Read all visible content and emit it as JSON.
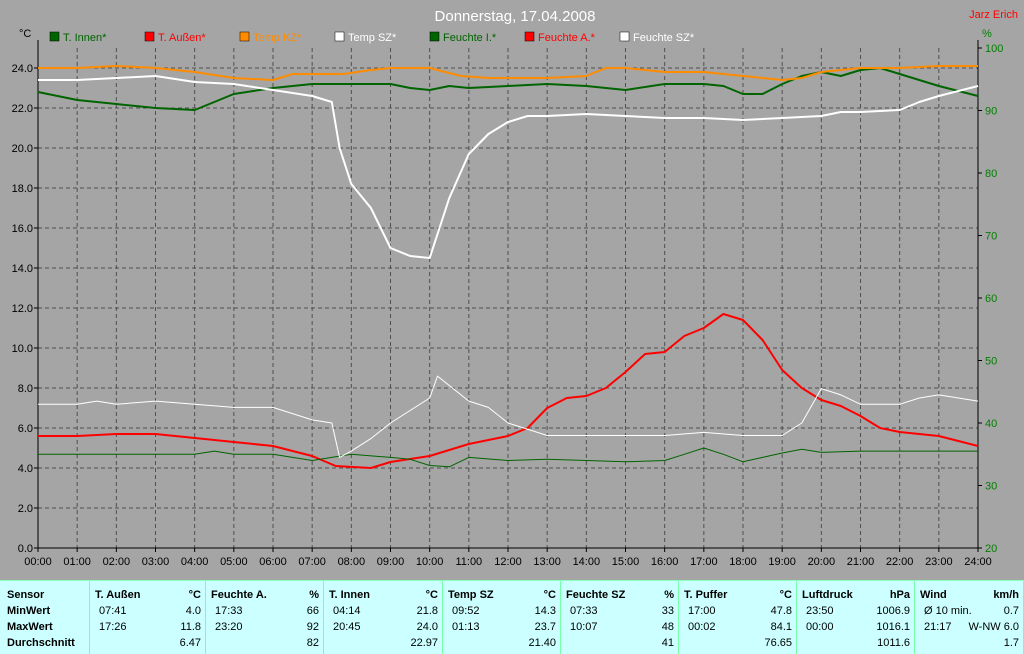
{
  "title": "Donnerstag, 17.04.2008",
  "author": "Jarz Erich",
  "colors": {
    "bg": "#a5a5a5",
    "green": "#006400",
    "red": "#ff0000",
    "orange": "#ff8c00",
    "white": "#ffffff",
    "axis_right": "#008000"
  },
  "chart_data": {
    "type": "line",
    "title": "Donnerstag, 17.04.2008",
    "y_left_unit": "°C",
    "y_right_unit": "%",
    "ylim_left": [
      0,
      25
    ],
    "ylim_right": [
      20,
      100
    ],
    "y_left_ticks": [
      "0.0",
      "2.0",
      "4.0",
      "6.0",
      "8.0",
      "10.0",
      "12.0",
      "14.0",
      "16.0",
      "18.0",
      "20.0",
      "22.0",
      "24.0"
    ],
    "y_right_ticks": [
      "20",
      "30",
      "40",
      "50",
      "60",
      "70",
      "80",
      "90",
      "100"
    ],
    "x_ticks": [
      "00:00",
      "01:00",
      "02:00",
      "03:00",
      "04:00",
      "05:00",
      "06:00",
      "07:00",
      "08:00",
      "09:00",
      "10:00",
      "11:00",
      "12:00",
      "13:00",
      "14:00",
      "15:00",
      "16:00",
      "17:00",
      "18:00",
      "19:00",
      "20:00",
      "21:00",
      "22:00",
      "23:00",
      "24:00"
    ],
    "grid": true,
    "legend": [
      {
        "label": "T. Innen*",
        "color": "#006400"
      },
      {
        "label": "T. Außen*",
        "color": "#ff0000"
      },
      {
        "label": "Temp KZ*",
        "color": "#ff8c00"
      },
      {
        "label": "Temp SZ*",
        "color": "#ffffff"
      },
      {
        "label": "Feuchte I.*",
        "color": "#006400"
      },
      {
        "label": "Feuchte A.*",
        "color": "#ff0000"
      },
      {
        "label": "Feuchte SZ*",
        "color": "#ffffff"
      }
    ],
    "series": [
      {
        "name": "T. Innen*",
        "axis": "left",
        "color": "#006400",
        "width": 2,
        "points": [
          [
            0,
            22.8
          ],
          [
            1,
            22.4
          ],
          [
            2,
            22.2
          ],
          [
            3,
            22.0
          ],
          [
            4,
            21.9
          ],
          [
            4.5,
            22.3
          ],
          [
            5,
            22.7
          ],
          [
            6,
            23.0
          ],
          [
            7,
            23.2
          ],
          [
            8,
            23.2
          ],
          [
            9,
            23.2
          ],
          [
            9.5,
            23.0
          ],
          [
            10,
            22.9
          ],
          [
            10.5,
            23.1
          ],
          [
            11,
            23.0
          ],
          [
            12,
            23.1
          ],
          [
            13,
            23.2
          ],
          [
            14,
            23.1
          ],
          [
            15,
            22.9
          ],
          [
            16,
            23.2
          ],
          [
            17,
            23.2
          ],
          [
            17.5,
            23.1
          ],
          [
            18,
            22.7
          ],
          [
            18.5,
            22.7
          ],
          [
            19,
            23.2
          ],
          [
            19.5,
            23.6
          ],
          [
            20,
            23.8
          ],
          [
            20.5,
            23.6
          ],
          [
            21,
            23.9
          ],
          [
            21.5,
            24.0
          ],
          [
            22,
            23.7
          ],
          [
            23,
            23.1
          ],
          [
            24,
            22.6
          ]
        ]
      },
      {
        "name": "T. Außen*",
        "axis": "left",
        "color": "#ff0000",
        "width": 2,
        "points": [
          [
            0,
            5.6
          ],
          [
            1,
            5.6
          ],
          [
            2,
            5.7
          ],
          [
            3,
            5.7
          ],
          [
            4,
            5.5
          ],
          [
            5,
            5.3
          ],
          [
            6,
            5.1
          ],
          [
            7,
            4.6
          ],
          [
            7.6,
            4.1
          ],
          [
            8.5,
            4.0
          ],
          [
            9,
            4.3
          ],
          [
            10,
            4.6
          ],
          [
            11,
            5.2
          ],
          [
            12,
            5.6
          ],
          [
            12.5,
            6.0
          ],
          [
            13,
            7.0
          ],
          [
            13.5,
            7.5
          ],
          [
            14,
            7.6
          ],
          [
            14.5,
            8.0
          ],
          [
            15,
            8.8
          ],
          [
            15.5,
            9.7
          ],
          [
            16,
            9.8
          ],
          [
            16.5,
            10.6
          ],
          [
            17,
            11.0
          ],
          [
            17.5,
            11.7
          ],
          [
            18,
            11.4
          ],
          [
            18.5,
            10.4
          ],
          [
            19,
            8.9
          ],
          [
            19.5,
            8.0
          ],
          [
            20,
            7.4
          ],
          [
            20.5,
            7.1
          ],
          [
            21,
            6.6
          ],
          [
            21.5,
            6.0
          ],
          [
            22,
            5.8
          ],
          [
            23,
            5.6
          ],
          [
            24,
            5.1
          ]
        ]
      },
      {
        "name": "Temp KZ*",
        "axis": "left",
        "color": "#ff8c00",
        "width": 2,
        "points": [
          [
            0,
            24.0
          ],
          [
            1,
            24.0
          ],
          [
            2,
            24.1
          ],
          [
            3,
            24.0
          ],
          [
            4,
            23.8
          ],
          [
            5,
            23.5
          ],
          [
            6,
            23.4
          ],
          [
            6.5,
            23.7
          ],
          [
            7,
            23.7
          ],
          [
            7.8,
            23.7
          ],
          [
            8.5,
            23.9
          ],
          [
            9,
            24.0
          ],
          [
            10,
            24.0
          ],
          [
            10.8,
            23.6
          ],
          [
            11.5,
            23.5
          ],
          [
            12,
            23.5
          ],
          [
            13,
            23.5
          ],
          [
            14,
            23.6
          ],
          [
            14.5,
            24.0
          ],
          [
            15,
            24.0
          ],
          [
            16,
            23.8
          ],
          [
            17,
            23.8
          ],
          [
            18,
            23.6
          ],
          [
            19,
            23.4
          ],
          [
            19.5,
            23.5
          ],
          [
            20,
            23.8
          ],
          [
            21,
            24.0
          ],
          [
            22,
            24.0
          ],
          [
            23,
            24.1
          ],
          [
            24,
            24.1
          ]
        ]
      },
      {
        "name": "Temp SZ*",
        "axis": "left",
        "color": "#ffffff",
        "width": 2,
        "points": [
          [
            0,
            23.4
          ],
          [
            1,
            23.4
          ],
          [
            2,
            23.5
          ],
          [
            3,
            23.6
          ],
          [
            4,
            23.3
          ],
          [
            5,
            23.2
          ],
          [
            6,
            22.9
          ],
          [
            7,
            22.6
          ],
          [
            7.5,
            22.3
          ],
          [
            7.7,
            20.0
          ],
          [
            8,
            18.2
          ],
          [
            8.5,
            17.0
          ],
          [
            9,
            15.0
          ],
          [
            9.5,
            14.6
          ],
          [
            10,
            14.5
          ],
          [
            10.5,
            17.5
          ],
          [
            11,
            19.7
          ],
          [
            11.5,
            20.7
          ],
          [
            12,
            21.3
          ],
          [
            12.5,
            21.6
          ],
          [
            13,
            21.6
          ],
          [
            14,
            21.7
          ],
          [
            15,
            21.6
          ],
          [
            16,
            21.5
          ],
          [
            17,
            21.5
          ],
          [
            18,
            21.4
          ],
          [
            19,
            21.5
          ],
          [
            20,
            21.6
          ],
          [
            20.5,
            21.8
          ],
          [
            21,
            21.8
          ],
          [
            22,
            21.9
          ],
          [
            22.5,
            22.3
          ],
          [
            23,
            22.6
          ],
          [
            24,
            23.1
          ]
        ]
      },
      {
        "name": "Feuchte I.*",
        "axis": "right",
        "color": "#006400",
        "width": 1,
        "points": [
          [
            0,
            35
          ],
          [
            1,
            35
          ],
          [
            2,
            35
          ],
          [
            3,
            35
          ],
          [
            4,
            35
          ],
          [
            4.5,
            35.5
          ],
          [
            5,
            35
          ],
          [
            6,
            35
          ],
          [
            7,
            34
          ],
          [
            8,
            35
          ],
          [
            9,
            34.5
          ],
          [
            9.5,
            34.2
          ],
          [
            10,
            33.2
          ],
          [
            10.5,
            33.0
          ],
          [
            11,
            34.5
          ],
          [
            12,
            34.0
          ],
          [
            13,
            34.2
          ],
          [
            14,
            34.0
          ],
          [
            15,
            33.8
          ],
          [
            16,
            34.0
          ],
          [
            16.5,
            35.0
          ],
          [
            17,
            36
          ],
          [
            17.5,
            35
          ],
          [
            18,
            33.8
          ],
          [
            18.5,
            34.5
          ],
          [
            19,
            35.2
          ],
          [
            19.5,
            35.8
          ],
          [
            20,
            35.3
          ],
          [
            21,
            35.5
          ],
          [
            22,
            35.5
          ],
          [
            23,
            35.5
          ],
          [
            24,
            35.5
          ]
        ]
      },
      {
        "name": "Feuchte SZ*",
        "axis": "right",
        "color": "#ffffff",
        "width": 1,
        "points": [
          [
            0,
            43
          ],
          [
            1,
            43
          ],
          [
            1.5,
            43.5
          ],
          [
            2,
            43
          ],
          [
            3,
            43.5
          ],
          [
            4,
            43
          ],
          [
            5,
            42.5
          ],
          [
            6,
            42.5
          ],
          [
            6.5,
            41.5
          ],
          [
            7,
            40.5
          ],
          [
            7.5,
            40
          ],
          [
            7.7,
            34.5
          ],
          [
            8,
            35.5
          ],
          [
            8.5,
            37.5
          ],
          [
            9,
            40
          ],
          [
            9.5,
            42
          ],
          [
            10,
            44
          ],
          [
            10.2,
            47.5
          ],
          [
            10.5,
            46
          ],
          [
            11,
            43.5
          ],
          [
            11.5,
            42.5
          ],
          [
            12,
            40
          ],
          [
            13,
            38
          ],
          [
            14,
            38
          ],
          [
            15,
            38
          ],
          [
            16,
            38
          ],
          [
            17,
            38.5
          ],
          [
            18,
            38
          ],
          [
            19,
            38
          ],
          [
            19.5,
            40
          ],
          [
            20,
            45.5
          ],
          [
            20.5,
            44.5
          ],
          [
            21,
            43
          ],
          [
            22,
            43
          ],
          [
            22.5,
            44
          ],
          [
            23,
            44.5
          ],
          [
            24,
            43.5
          ]
        ]
      }
    ]
  },
  "stats": {
    "headers": {
      "sensor": "Sensor",
      "cols": [
        {
          "name": "T. Außen",
          "unit": "°C"
        },
        {
          "name": "Feuchte A.",
          "unit": "%"
        },
        {
          "name": "T. Innen",
          "unit": "°C"
        },
        {
          "name": "Temp SZ",
          "unit": "°C"
        },
        {
          "name": "Feuchte SZ",
          "unit": "%"
        },
        {
          "name": "T. Puffer",
          "unit": "°C"
        },
        {
          "name": "Luftdruck",
          "unit": "hPa"
        },
        {
          "name": "Wind",
          "unit": "km/h"
        }
      ]
    },
    "rows": [
      {
        "label": "MinWert",
        "cells": [
          {
            "t": "07:41",
            "v": "4.0"
          },
          {
            "t": "17:33",
            "v": "66"
          },
          {
            "t": "04:14",
            "v": "21.8"
          },
          {
            "t": "09:52",
            "v": "14.3"
          },
          {
            "t": "07:33",
            "v": "33"
          },
          {
            "t": "17:00",
            "v": "47.8"
          },
          {
            "t": "23:50",
            "v": "1006.9"
          },
          {
            "t": "Ø 10 min.",
            "v": "0.7"
          }
        ]
      },
      {
        "label": "MaxWert",
        "cells": [
          {
            "t": "17:26",
            "v": "11.8"
          },
          {
            "t": "23:20",
            "v": "92"
          },
          {
            "t": "20:45",
            "v": "24.0"
          },
          {
            "t": "01:13",
            "v": "23.7"
          },
          {
            "t": "10:07",
            "v": "48"
          },
          {
            "t": "00:02",
            "v": "84.1"
          },
          {
            "t": "00:00",
            "v": "1016.1"
          },
          {
            "t": "21:17",
            "v": "W-NW 6.0"
          }
        ]
      },
      {
        "label": "Durchschnitt",
        "cells": [
          {
            "t": "",
            "v": "6.47"
          },
          {
            "t": "",
            "v": "82"
          },
          {
            "t": "",
            "v": "22.97"
          },
          {
            "t": "",
            "v": "21.40"
          },
          {
            "t": "",
            "v": "41"
          },
          {
            "t": "",
            "v": "76.65"
          },
          {
            "t": "",
            "v": "1011.6"
          },
          {
            "t": "",
            "v": "1.7"
          }
        ]
      }
    ]
  }
}
